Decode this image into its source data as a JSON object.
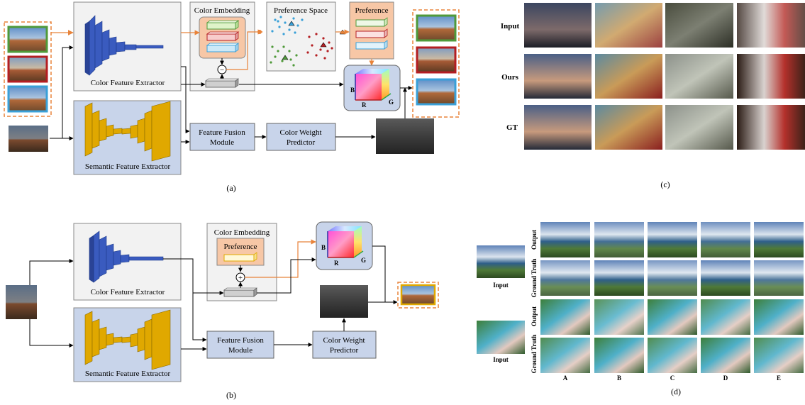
{
  "panel_a": {
    "caption": "(a)",
    "color_feature_extractor": "Color Feature Extractor",
    "semantic_feature_extractor": "Semantic Feature Extractor",
    "color_embedding": "Color Embedding",
    "preference_space": "Preference Space",
    "preference": "Preference",
    "feature_fusion_line1": "Feature Fusion",
    "feature_fusion_line2": "Module",
    "color_weight_line1": "Color Weight",
    "color_weight_line2": "Predictor",
    "minus_symbol": "−",
    "axis_b": "B",
    "axis_r": "R",
    "axis_g": "G"
  },
  "panel_b": {
    "caption": "(b)",
    "color_feature_extractor": "Color Feature Extractor",
    "semantic_feature_extractor": "Semantic Feature Extractor",
    "color_embedding": "Color Embedding",
    "preference": "Preference",
    "feature_fusion_line1": "Feature Fusion",
    "feature_fusion_line2": "Module",
    "color_weight_line1": "Color Weight",
    "color_weight_line2": "Predictor",
    "plus_symbol": "+",
    "axis_b": "B",
    "axis_r": "R",
    "axis_g": "G"
  },
  "panel_c": {
    "caption": "(c)",
    "rows": [
      "Input",
      "Ours",
      "GT"
    ]
  },
  "panel_d": {
    "caption": "(d)",
    "input_label_1": "Input",
    "input_label_2": "Input",
    "row_labels": [
      "Output",
      "Ground Truth",
      "Output",
      "Ground Truth"
    ],
    "columns": [
      "A",
      "B",
      "C",
      "D",
      "E"
    ]
  },
  "colors": {
    "orange_arrow": "#e8833a",
    "blue_extractor": "#3a5bbf",
    "gold_extractor": "#e0a800",
    "gray_box": "#f2f2f2",
    "blue_box": "#c8d4ea",
    "peach_box": "#f7c7a6"
  }
}
